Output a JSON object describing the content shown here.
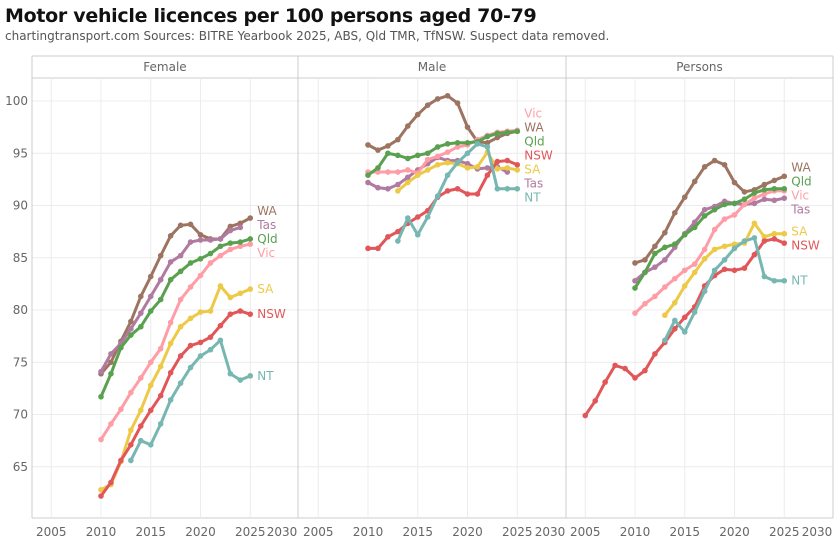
{
  "chart_data": {
    "type": "line",
    "title": "Motor vehicle licences per 100 persons aged 70-79",
    "subtitle": "chartingtransport.com  Sources: BITRE Yearbook 2025, ABS, Qld TMR, TfNSW. Suspect data removed.",
    "ylim": [
      60,
      102
    ],
    "yticks": [
      65,
      70,
      75,
      80,
      85,
      90,
      95,
      100
    ],
    "xticks": [
      2005,
      2010,
      2015,
      2020,
      2025,
      2030
    ],
    "grid": true,
    "colors": {
      "WA": "#9c7461",
      "Tas": "#b07aa1",
      "Qld": "#59a14f",
      "Vic": "#ff9da7",
      "SA": "#edc948",
      "NSW": "#e15759",
      "NT": "#76b7b2"
    },
    "panels": [
      {
        "name": "Female",
        "series": [
          {
            "name": "WA",
            "start": 2010,
            "values": [
              73.9,
              75.0,
              77.0,
              78.9,
              81.3,
              83.2,
              85.2,
              87.1,
              88.1,
              88.2,
              87.2,
              86.8,
              86.8,
              88.0,
              88.3,
              88.8
            ]
          },
          {
            "name": "Tas",
            "start": 2010,
            "values": [
              74.1,
              75.8,
              76.8,
              78.2,
              79.7,
              81.3,
              82.9,
              84.6,
              85.2,
              86.5,
              86.7,
              86.7,
              86.8,
              87.6,
              87.9
            ]
          },
          {
            "name": "Vic",
            "start": 2010,
            "values": [
              67.6,
              69.1,
              70.5,
              72.1,
              73.5,
              75.0,
              76.3,
              78.8,
              81.0,
              82.2,
              83.3,
              84.5,
              85.2,
              85.8,
              86.1,
              86.3
            ]
          },
          {
            "name": "Qld",
            "start": 2010,
            "values": [
              71.7,
              73.9,
              76.4,
              77.6,
              78.4,
              79.9,
              81.0,
              82.9,
              83.7,
              84.5,
              84.9,
              85.4,
              86.1,
              86.4,
              86.5,
              86.8
            ]
          },
          {
            "name": "SA",
            "start": 2010,
            "values": [
              62.8,
              63.3,
              65.5,
              68.5,
              70.4,
              72.8,
              74.6,
              76.8,
              78.4,
              79.2,
              79.8,
              79.9,
              82.3,
              81.2,
              81.6,
              82.0
            ]
          },
          {
            "name": "NSW",
            "start": 2010,
            "values": [
              62.2,
              63.5,
              65.6,
              67.1,
              68.9,
              70.4,
              71.8,
              74.0,
              75.6,
              76.6,
              76.9,
              77.4,
              78.5,
              79.6,
              79.9,
              79.6
            ]
          },
          {
            "name": "NT",
            "start": 2013,
            "values": [
              65.6,
              67.5,
              67.1,
              69.1,
              71.4,
              73.0,
              74.5,
              75.6,
              76.2,
              77.1,
              73.9,
              73.3,
              73.7
            ]
          }
        ]
      },
      {
        "name": "Male",
        "series": [
          {
            "name": "WA",
            "start": 2010,
            "values": [
              95.8,
              95.3,
              95.7,
              96.3,
              97.6,
              98.7,
              99.6,
              100.2,
              100.5,
              99.8,
              97.5,
              96.1,
              96.0,
              96.5,
              96.9,
              97.1
            ]
          },
          {
            "name": "Tas",
            "start": 2010,
            "values": [
              92.2,
              91.7,
              91.6,
              92.0,
              92.7,
              93.4,
              94.0,
              94.6,
              94.3,
              94.3,
              94.0,
              93.5,
              93.6,
              93.7,
              93.2
            ]
          },
          {
            "name": "Vic",
            "start": 2010,
            "values": [
              93.2,
              93.2,
              93.2,
              93.2,
              93.4,
              93.1,
              94.4,
              94.7,
              95.1,
              95.6,
              95.8,
              96.3,
              96.7,
              97.0,
              97.1,
              97.2
            ]
          },
          {
            "name": "Qld",
            "start": 2010,
            "values": [
              92.9,
              93.6,
              95.0,
              94.8,
              94.5,
              94.8,
              95.0,
              95.6,
              95.9,
              96.0,
              96.0,
              96.1,
              96.6,
              96.9,
              97.0,
              97.1
            ]
          },
          {
            "name": "SA",
            "start": 2013,
            "values": [
              91.4,
              92.2,
              92.9,
              93.4,
              93.9,
              94.1,
              94.0,
              93.6,
              93.7,
              95.1,
              93.5,
              93.6,
              93.4
            ]
          },
          {
            "name": "NSW",
            "start": 2010,
            "values": [
              85.9,
              85.9,
              87.0,
              87.5,
              88.3,
              88.9,
              89.5,
              90.8,
              91.4,
              91.6,
              91.1,
              91.1,
              92.9,
              94.2,
              94.3,
              93.9
            ]
          },
          {
            "name": "NT",
            "start": 2013,
            "values": [
              86.6,
              88.8,
              87.2,
              88.9,
              90.9,
              92.9,
              94.1,
              95.0,
              95.9,
              95.6,
              91.6,
              91.6,
              91.6
            ]
          }
        ]
      },
      {
        "name": "Persons",
        "series": [
          {
            "name": "WA",
            "start": 2010,
            "values": [
              84.5,
              84.8,
              86.1,
              87.4,
              89.3,
              90.8,
              92.3,
              93.7,
              94.3,
              93.9,
              92.2,
              91.3,
              91.5,
              92.0,
              92.4,
              92.8
            ]
          },
          {
            "name": "Tas",
            "start": 2010,
            "values": [
              82.8,
              83.6,
              84.1,
              84.8,
              86.0,
              87.3,
              88.4,
              89.6,
              89.9,
              90.4,
              90.2,
              90.1,
              90.2,
              90.6,
              90.5,
              90.7
            ]
          },
          {
            "name": "Vic",
            "start": 2010,
            "values": [
              79.7,
              80.6,
              81.3,
              82.2,
              83.0,
              83.8,
              84.4,
              85.8,
              87.7,
              88.7,
              89.1,
              90.1,
              90.7,
              91.1,
              91.4,
              91.4
            ]
          },
          {
            "name": "Qld",
            "start": 2010,
            "values": [
              82.1,
              83.6,
              85.4,
              86.0,
              86.3,
              87.2,
              87.9,
              89.0,
              89.6,
              90.1,
              90.2,
              90.6,
              91.2,
              91.5,
              91.6,
              91.6
            ]
          },
          {
            "name": "SA",
            "start": 2013,
            "values": [
              79.5,
              80.7,
              82.3,
              83.6,
              84.9,
              85.8,
              86.1,
              86.3,
              86.4,
              88.3,
              87.0,
              87.3,
              87.3
            ]
          },
          {
            "name": "NSW",
            "start": 2005,
            "values": [
              69.9,
              71.3,
              73.1,
              74.7,
              74.4,
              73.5,
              74.2,
              75.8,
              76.9,
              78.2,
              79.3,
              80.3,
              82.3,
              83.3,
              83.9,
              83.8,
              84.0,
              85.3,
              86.6,
              86.8,
              86.4
            ]
          },
          {
            "name": "NT",
            "start": 2013,
            "values": [
              77.1,
              79.0,
              77.9,
              79.8,
              81.8,
              83.8,
              84.8,
              85.9,
              86.6,
              86.9,
              83.2,
              82.8,
              82.8
            ]
          }
        ]
      }
    ]
  }
}
